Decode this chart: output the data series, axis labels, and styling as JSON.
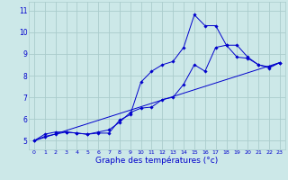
{
  "background_color": "#cce8e8",
  "grid_color": "#aacccc",
  "line_color": "#0000cc",
  "xlabel": "Graphe des températures (°c)",
  "ylim": [
    4.6,
    11.4
  ],
  "xlim": [
    -0.5,
    23.5
  ],
  "yticks": [
    5,
    6,
    7,
    8,
    9,
    10,
    11
  ],
  "xticks": [
    0,
    1,
    2,
    3,
    4,
    5,
    6,
    7,
    8,
    9,
    10,
    11,
    12,
    13,
    14,
    15,
    16,
    17,
    18,
    19,
    20,
    21,
    22,
    23
  ],
  "line1_x": [
    0,
    1,
    2,
    3,
    4,
    5,
    6,
    7,
    8,
    9,
    10,
    11,
    12,
    13,
    14,
    15,
    16,
    17,
    18,
    19,
    20,
    21,
    22,
    23
  ],
  "line1_y": [
    5.0,
    5.3,
    5.4,
    5.4,
    5.35,
    5.3,
    5.4,
    5.5,
    5.85,
    6.3,
    6.5,
    6.55,
    6.9,
    7.0,
    7.6,
    8.5,
    8.2,
    9.3,
    9.4,
    8.85,
    8.8,
    8.5,
    8.4,
    8.6
  ],
  "line2_x": [
    0,
    1,
    2,
    3,
    4,
    5,
    6,
    7,
    8,
    9,
    10,
    11,
    12,
    13,
    14,
    15,
    16,
    17,
    18,
    19,
    20,
    21,
    22,
    23
  ],
  "line2_y": [
    5.0,
    5.2,
    5.3,
    5.4,
    5.35,
    5.3,
    5.35,
    5.35,
    5.95,
    6.2,
    7.7,
    8.2,
    8.5,
    8.65,
    9.3,
    10.8,
    10.3,
    10.3,
    9.4,
    9.4,
    8.85,
    8.5,
    8.35,
    8.6
  ],
  "line3_x": [
    0,
    23
  ],
  "line3_y": [
    5.0,
    8.6
  ]
}
